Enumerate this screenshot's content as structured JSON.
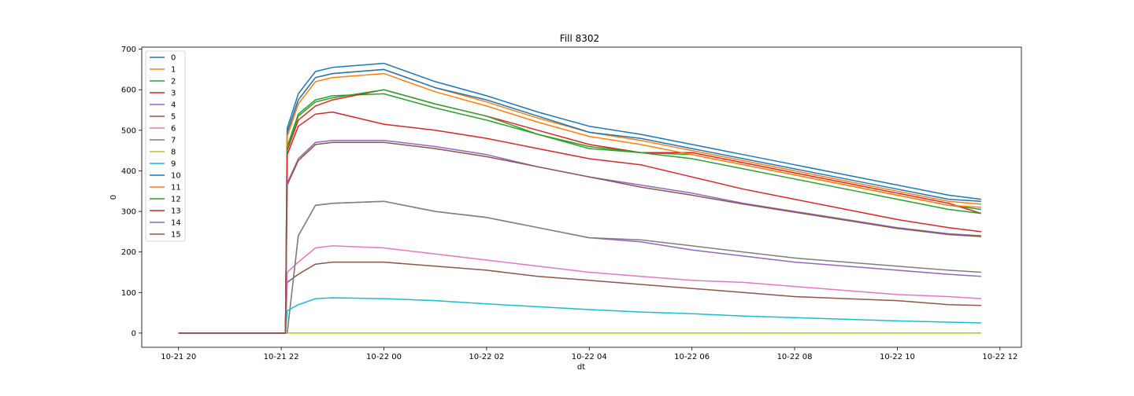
{
  "chart_data": {
    "type": "line",
    "title": "Fill 8302",
    "xlabel": "dt",
    "ylabel": "0",
    "xlim": [
      "2022-10-21T19:17",
      "2022-10-22T12:25"
    ],
    "ylim": [
      -35,
      705
    ],
    "x_ticks": [
      {
        "t": "2022-10-21T20:00",
        "label": "10-21 20"
      },
      {
        "t": "2022-10-21T22:00",
        "label": "10-21 22"
      },
      {
        "t": "2022-10-22T00:00",
        "label": "10-22 00"
      },
      {
        "t": "2022-10-22T02:00",
        "label": "10-22 02"
      },
      {
        "t": "2022-10-22T04:00",
        "label": "10-22 04"
      },
      {
        "t": "2022-10-22T06:00",
        "label": "10-22 06"
      },
      {
        "t": "2022-10-22T08:00",
        "label": "10-22 08"
      },
      {
        "t": "2022-10-22T10:00",
        "label": "10-22 10"
      },
      {
        "t": "2022-10-22T12:00",
        "label": "10-22 12"
      }
    ],
    "y_ticks": [
      0,
      100,
      200,
      300,
      400,
      500,
      600,
      700
    ],
    "grid": false,
    "legend": "upper left",
    "x": [
      "2022-10-21T20:00",
      "2022-10-21T22:05",
      "2022-10-21T22:07",
      "2022-10-21T22:20",
      "2022-10-21T22:40",
      "2022-10-21T23:00",
      "2022-10-22T00:00",
      "2022-10-22T01:00",
      "2022-10-22T02:00",
      "2022-10-22T03:00",
      "2022-10-22T04:00",
      "2022-10-22T05:00",
      "2022-10-22T06:00",
      "2022-10-22T07:00",
      "2022-10-22T08:00",
      "2022-10-22T09:00",
      "2022-10-22T10:00",
      "2022-10-22T11:00",
      "2022-10-22T11:38"
    ],
    "series": [
      {
        "name": "0",
        "color": "#1f77b4",
        "values": [
          0,
          0,
          505,
          590,
          645,
          655,
          665,
          620,
          585,
          545,
          510,
          490,
          465,
          440,
          415,
          390,
          365,
          340,
          330
        ]
      },
      {
        "name": "1",
        "color": "#ff7f0e",
        "values": [
          0,
          0,
          495,
          575,
          630,
          640,
          650,
          605,
          570,
          530,
          495,
          475,
          450,
          425,
          400,
          375,
          350,
          325,
          318
        ]
      },
      {
        "name": "2",
        "color": "#2ca02c",
        "values": [
          0,
          0,
          460,
          540,
          575,
          585,
          590,
          555,
          525,
          490,
          455,
          445,
          440,
          415,
          390,
          365,
          340,
          315,
          305
        ]
      },
      {
        "name": "3",
        "color": "#d62728",
        "values": [
          0,
          0,
          450,
          525,
          560,
          575,
          600,
          565,
          535,
          500,
          465,
          445,
          445,
          420,
          395,
          370,
          345,
          320,
          295
        ]
      },
      {
        "name": "4",
        "color": "#9467bd",
        "values": [
          0,
          0,
          0,
          240,
          315,
          320,
          325,
          300,
          285,
          260,
          235,
          225,
          205,
          190,
          175,
          165,
          155,
          145,
          140
        ]
      },
      {
        "name": "5",
        "color": "#8c564b",
        "values": [
          0,
          0,
          125,
          145,
          170,
          175,
          175,
          165,
          155,
          140,
          130,
          120,
          110,
          100,
          90,
          85,
          80,
          70,
          68
        ]
      },
      {
        "name": "6",
        "color": "#e377c2",
        "values": [
          0,
          0,
          150,
          175,
          210,
          215,
          210,
          195,
          180,
          165,
          150,
          140,
          130,
          125,
          115,
          105,
          95,
          90,
          85
        ]
      },
      {
        "name": "7",
        "color": "#7f7f7f",
        "values": [
          0,
          0,
          0,
          240,
          315,
          320,
          325,
          300,
          285,
          260,
          235,
          230,
          215,
          200,
          185,
          175,
          165,
          155,
          150
        ]
      },
      {
        "name": "8",
        "color": "#bcbd22",
        "values": [
          0,
          0,
          0,
          0,
          0,
          0,
          0,
          0,
          0,
          0,
          0,
          0,
          0,
          0,
          0,
          0,
          0,
          0,
          0
        ]
      },
      {
        "name": "9",
        "color": "#17becf",
        "values": [
          0,
          0,
          55,
          70,
          85,
          87,
          85,
          80,
          72,
          65,
          58,
          52,
          48,
          42,
          38,
          34,
          30,
          27,
          25
        ]
      },
      {
        "name": "10",
        "color": "#1f77b4",
        "values": [
          0,
          0,
          495,
          575,
          630,
          640,
          650,
          605,
          575,
          535,
          495,
          480,
          455,
          430,
          405,
          380,
          355,
          330,
          325
        ]
      },
      {
        "name": "11",
        "color": "#ff7f0e",
        "values": [
          0,
          0,
          485,
          565,
          620,
          630,
          640,
          595,
          560,
          520,
          485,
          465,
          440,
          415,
          390,
          365,
          340,
          315,
          310
        ]
      },
      {
        "name": "12",
        "color": "#2ca02c",
        "values": [
          0,
          0,
          455,
          535,
          570,
          580,
          600,
          565,
          535,
          490,
          460,
          445,
          430,
          405,
          380,
          355,
          330,
          305,
          295
        ]
      },
      {
        "name": "13",
        "color": "#d62728",
        "values": [
          0,
          0,
          440,
          510,
          540,
          545,
          515,
          500,
          480,
          455,
          430,
          415,
          385,
          355,
          330,
          305,
          280,
          260,
          250
        ]
      },
      {
        "name": "14",
        "color": "#9467bd",
        "values": [
          0,
          0,
          370,
          430,
          470,
          475,
          475,
          460,
          440,
          410,
          385,
          365,
          345,
          320,
          300,
          280,
          260,
          245,
          240
        ]
      },
      {
        "name": "15",
        "color": "#8c564b",
        "values": [
          0,
          0,
          365,
          425,
          465,
          470,
          470,
          455,
          435,
          410,
          385,
          360,
          340,
          318,
          298,
          278,
          258,
          243,
          238
        ]
      }
    ]
  }
}
